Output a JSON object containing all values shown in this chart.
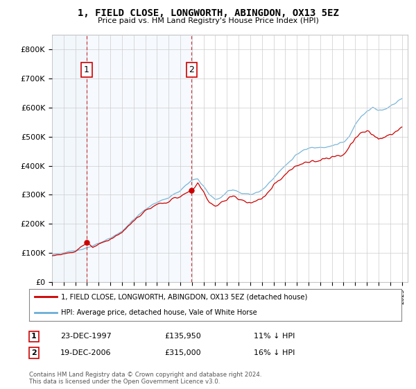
{
  "title": "1, FIELD CLOSE, LONGWORTH, ABINGDON, OX13 5EZ",
  "subtitle": "Price paid vs. HM Land Registry's House Price Index (HPI)",
  "legend_line1": "1, FIELD CLOSE, LONGWORTH, ABINGDON, OX13 5EZ (detached house)",
  "legend_line2": "HPI: Average price, detached house, Vale of White Horse",
  "footnote": "Contains HM Land Registry data © Crown copyright and database right 2024.\nThis data is licensed under the Open Government Licence v3.0.",
  "sale1_label": "1",
  "sale1_date": "23-DEC-1997",
  "sale1_price": "£135,950",
  "sale1_hpi": "11% ↓ HPI",
  "sale1_year": 1997.97,
  "sale1_value": 135950,
  "sale2_label": "2",
  "sale2_date": "19-DEC-2006",
  "sale2_price": "£315,000",
  "sale2_hpi": "16% ↓ HPI",
  "sale2_year": 2006.97,
  "sale2_value": 315000,
  "hpi_color": "#6baed6",
  "price_color": "#cc0000",
  "dashed_color": "#cc0000",
  "ylim": [
    0,
    850000
  ],
  "yticks": [
    0,
    100000,
    200000,
    300000,
    400000,
    500000,
    600000,
    700000,
    800000
  ],
  "ytick_labels": [
    "£0",
    "£100K",
    "£200K",
    "£300K",
    "£400K",
    "£500K",
    "£600K",
    "£700K",
    "£800K"
  ],
  "background_color": "#ffffff",
  "grid_color": "#cccccc",
  "shade_color": "#ddeeff"
}
